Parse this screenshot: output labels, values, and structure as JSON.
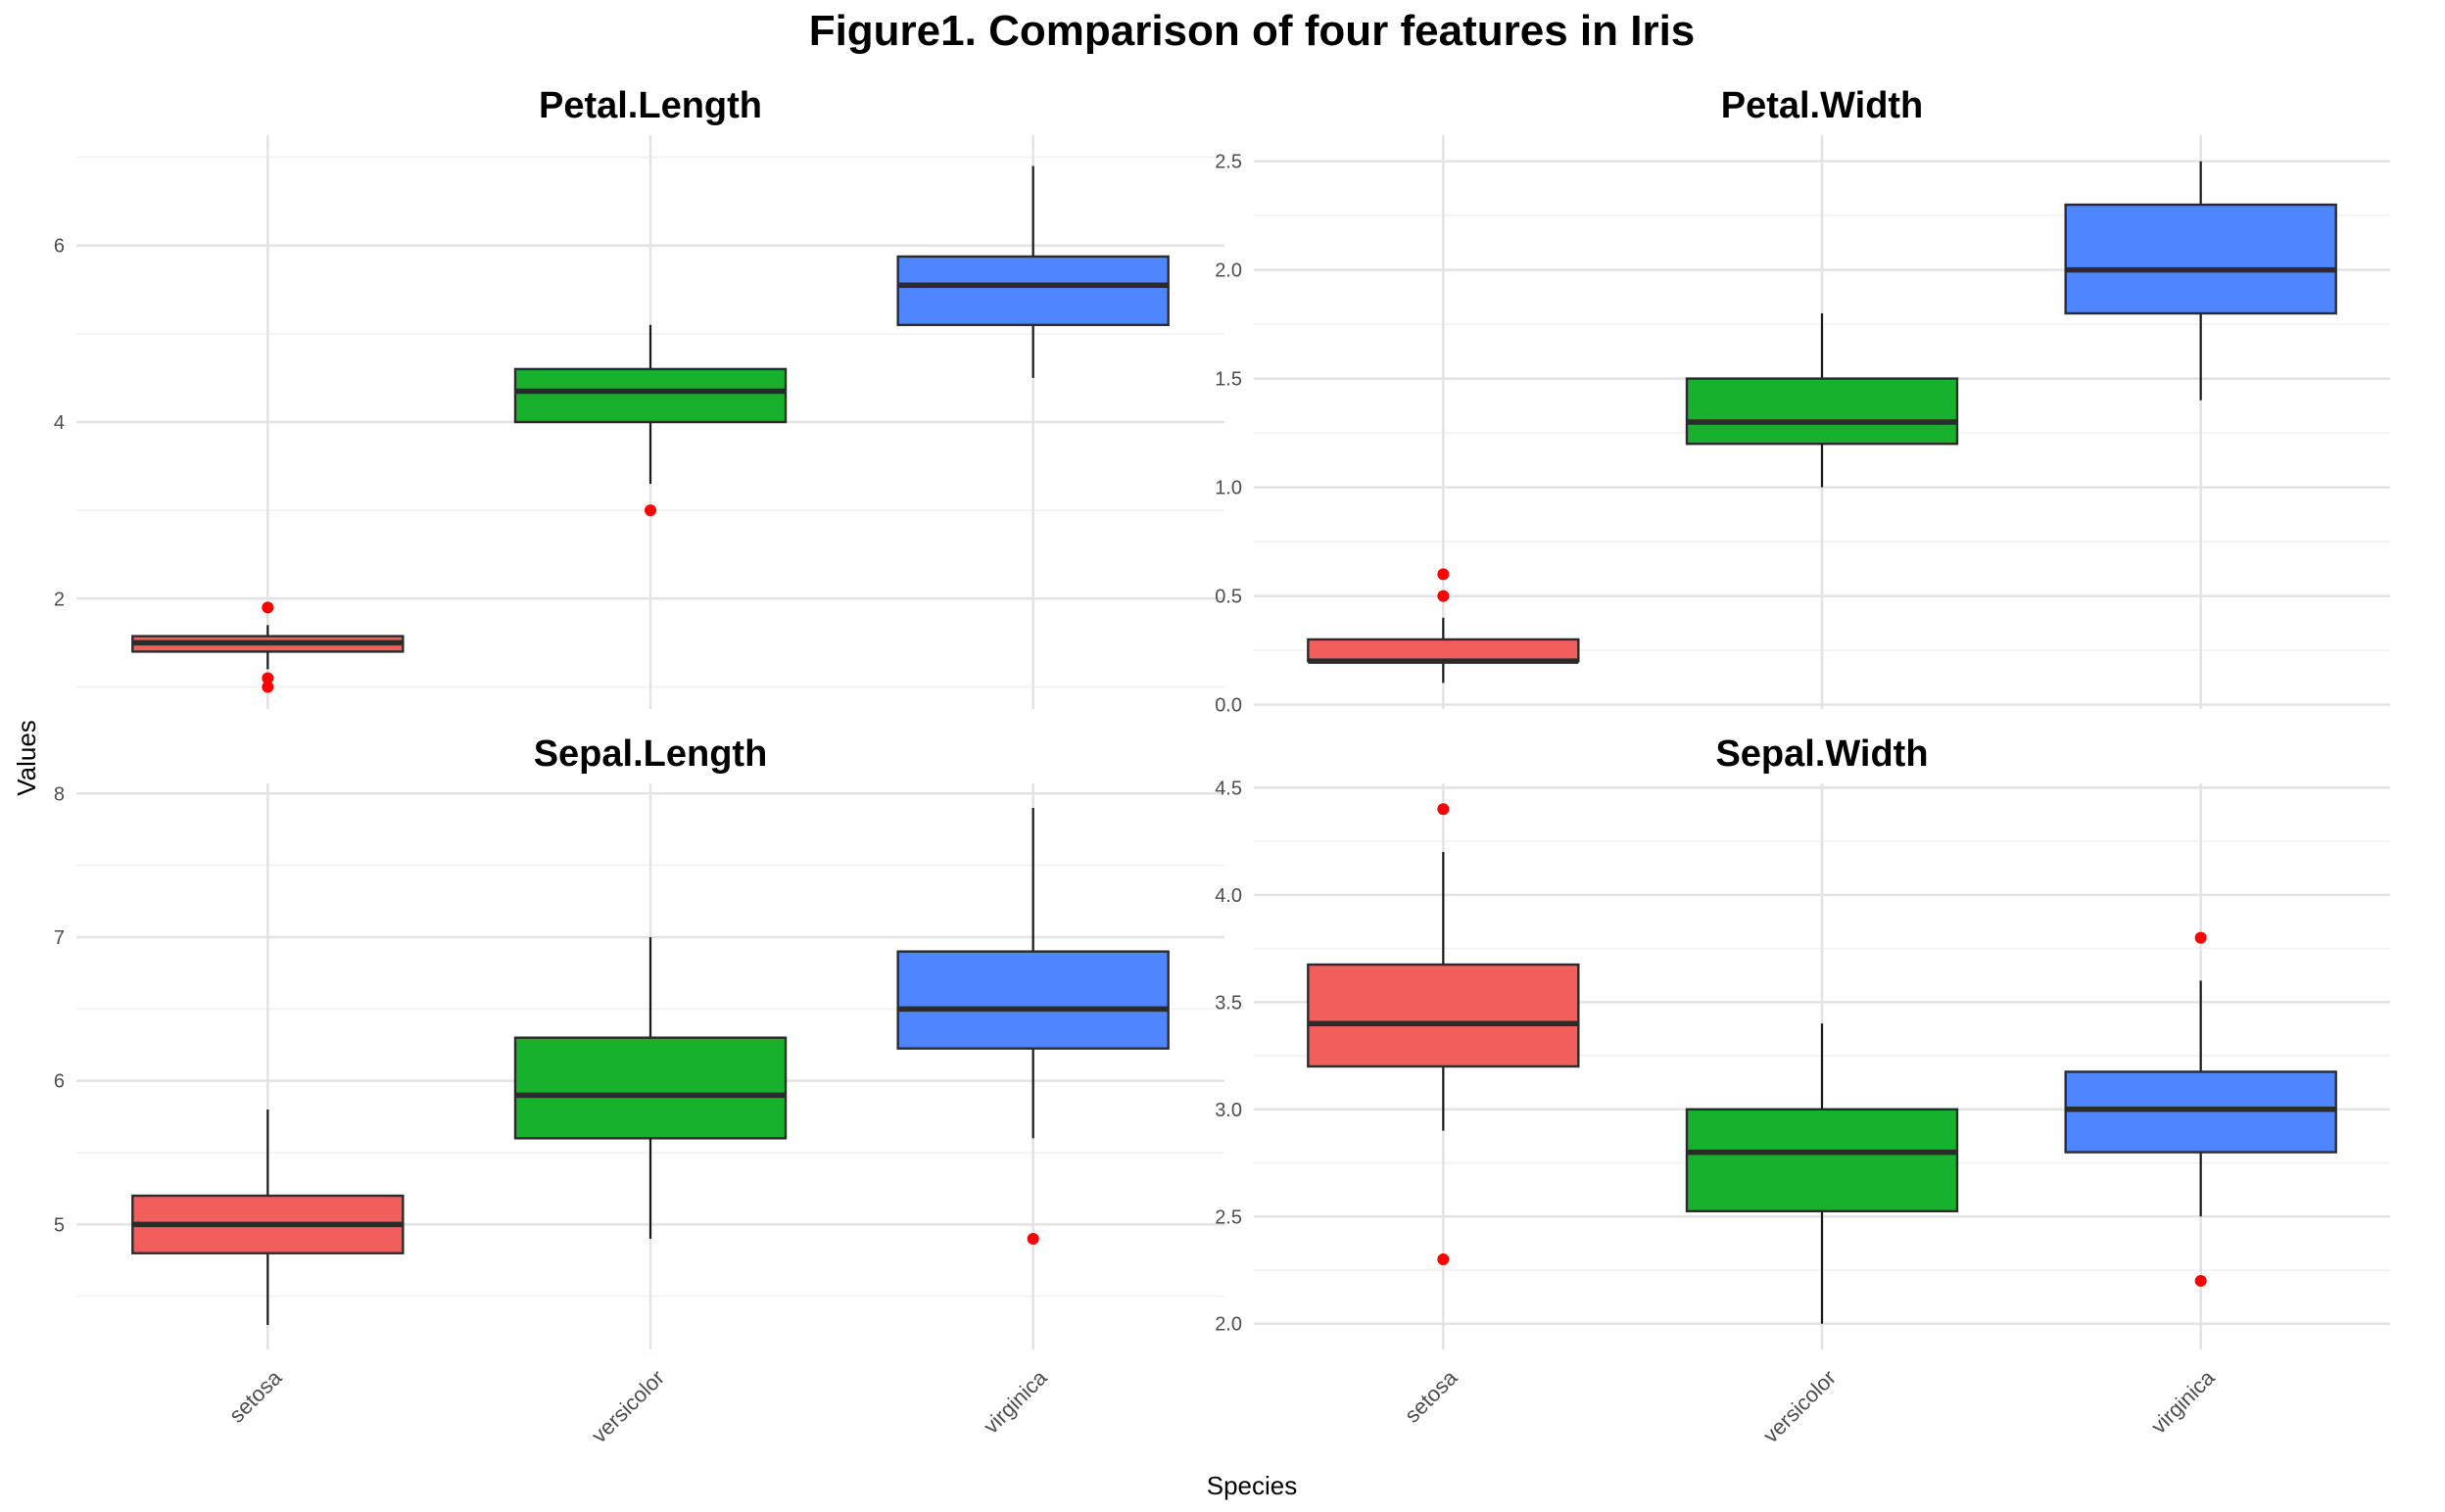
{
  "chart_data": {
    "type": "boxplot",
    "title": "Figure1. Comparison of four features in Iris",
    "xlabel": "Species",
    "ylabel": "Values",
    "categories": [
      "setosa",
      "versicolor",
      "virginica"
    ],
    "colors": [
      "#F25E5B",
      "#18B12E",
      "#4F86FF"
    ],
    "outlier_color": "#FF0000",
    "grid": true,
    "panels": [
      {
        "title": "Petal.Length",
        "ylim": [
          0.75,
          7.25
        ],
        "yticks": [
          2,
          4,
          6
        ],
        "ytick_labels": [
          "2",
          "4",
          "6"
        ],
        "boxes": [
          {
            "category": "setosa",
            "min": 1.2,
            "q1": 1.4,
            "median": 1.5,
            "q3": 1.575,
            "max": 1.7,
            "outliers": [
              1.9,
              1.1,
              1.0
            ]
          },
          {
            "category": "versicolor",
            "min": 3.3,
            "q1": 4.0,
            "median": 4.35,
            "q3": 4.6,
            "max": 5.1,
            "outliers": [
              3.0
            ]
          },
          {
            "category": "virginica",
            "min": 4.5,
            "q1": 5.1,
            "median": 5.55,
            "q3": 5.875,
            "max": 6.9,
            "outliers": []
          }
        ]
      },
      {
        "title": "Petal.Width",
        "ylim": [
          -0.02,
          2.62
        ],
        "yticks": [
          0.0,
          0.5,
          1.0,
          1.5,
          2.0,
          2.5
        ],
        "ytick_labels": [
          "0.0",
          "0.5",
          "1.0",
          "1.5",
          "2.0",
          "2.5"
        ],
        "boxes": [
          {
            "category": "setosa",
            "min": 0.1,
            "q1": 0.2,
            "median": 0.2,
            "q3": 0.3,
            "max": 0.4,
            "outliers": [
              0.6,
              0.5
            ]
          },
          {
            "category": "versicolor",
            "min": 1.0,
            "q1": 1.2,
            "median": 1.3,
            "q3": 1.5,
            "max": 1.8,
            "outliers": []
          },
          {
            "category": "virginica",
            "min": 1.4,
            "q1": 1.8,
            "median": 2.0,
            "q3": 2.3,
            "max": 2.5,
            "outliers": []
          }
        ]
      },
      {
        "title": "Sepal.Length",
        "ylim": [
          4.13,
          8.07
        ],
        "yticks": [
          5,
          6,
          7,
          8
        ],
        "ytick_labels": [
          "5",
          "6",
          "7",
          "8"
        ],
        "boxes": [
          {
            "category": "setosa",
            "min": 4.3,
            "q1": 4.8,
            "median": 5.0,
            "q3": 5.2,
            "max": 5.8,
            "outliers": []
          },
          {
            "category": "versicolor",
            "min": 4.9,
            "q1": 5.6,
            "median": 5.9,
            "q3": 6.3,
            "max": 7.0,
            "outliers": []
          },
          {
            "category": "virginica",
            "min": 5.6,
            "q1": 6.225,
            "median": 6.5,
            "q3": 6.9,
            "max": 7.9,
            "outliers": [
              4.9
            ]
          }
        ]
      },
      {
        "title": "Sepal.Width",
        "ylim": [
          1.88,
          4.52
        ],
        "yticks": [
          2.0,
          2.5,
          3.0,
          3.5,
          4.0,
          4.5
        ],
        "ytick_labels": [
          "2.0",
          "2.5",
          "3.0",
          "3.5",
          "4.0",
          "4.5"
        ],
        "boxes": [
          {
            "category": "setosa",
            "min": 2.9,
            "q1": 3.2,
            "median": 3.4,
            "q3": 3.675,
            "max": 4.2,
            "outliers": [
              4.4,
              2.3
            ]
          },
          {
            "category": "versicolor",
            "min": 2.0,
            "q1": 2.525,
            "median": 2.8,
            "q3": 3.0,
            "max": 3.4,
            "outliers": []
          },
          {
            "category": "virginica",
            "min": 2.5,
            "q1": 2.8,
            "median": 3.0,
            "q3": 3.175,
            "max": 3.6,
            "outliers": [
              3.8,
              2.2
            ]
          }
        ]
      }
    ]
  }
}
